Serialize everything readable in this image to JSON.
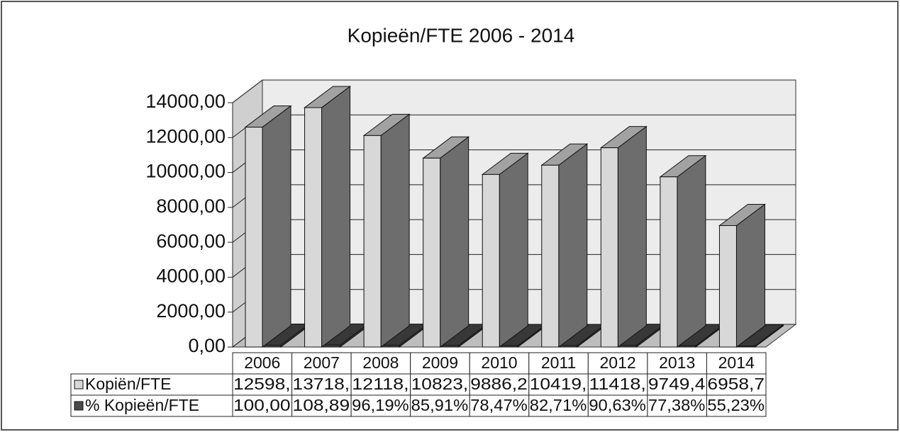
{
  "chart_data": {
    "type": "bar3d",
    "title": "Kopieën/FTE 2006 - 2014",
    "categories": [
      "2006",
      "2007",
      "2008",
      "2009",
      "2010",
      "2011",
      "2012",
      "2013",
      "2014"
    ],
    "series": [
      {
        "name": "Kopiën/FTE",
        "color": "#d8d8d8",
        "values": [
          12598,
          13718,
          12118,
          10823,
          9886.2,
          10419,
          11418,
          9749.4,
          6958.7
        ],
        "value_labels": [
          "12598,",
          "13718,",
          "12118,",
          "10823,",
          "9886,2",
          "10419,",
          "11418,",
          "9749,4",
          "6958,7"
        ]
      },
      {
        "name": "% Kopieën/FTE",
        "color": "#4a4a4a",
        "values": [
          100.0,
          108.89,
          96.19,
          85.91,
          78.47,
          82.71,
          90.63,
          77.38,
          55.23
        ],
        "value_labels": [
          "100,00",
          "108,89",
          "96,19%",
          "85,91%",
          "78,47%",
          "82,71%",
          "90,63%",
          "77,38%",
          "55,23%"
        ]
      }
    ],
    "ylim": [
      0,
      14000
    ],
    "yticks": [
      {
        "value": 0,
        "label": "0,00"
      },
      {
        "value": 2000,
        "label": "2000,00"
      },
      {
        "value": 4000,
        "label": "4000,00"
      },
      {
        "value": 6000,
        "label": "6000,00"
      },
      {
        "value": 8000,
        "label": "8000,00"
      },
      {
        "value": 10000,
        "label": "10000,00"
      },
      {
        "value": 12000,
        "label": "12000,00"
      },
      {
        "value": 14000,
        "label": "14000,00"
      }
    ],
    "grid": true
  }
}
